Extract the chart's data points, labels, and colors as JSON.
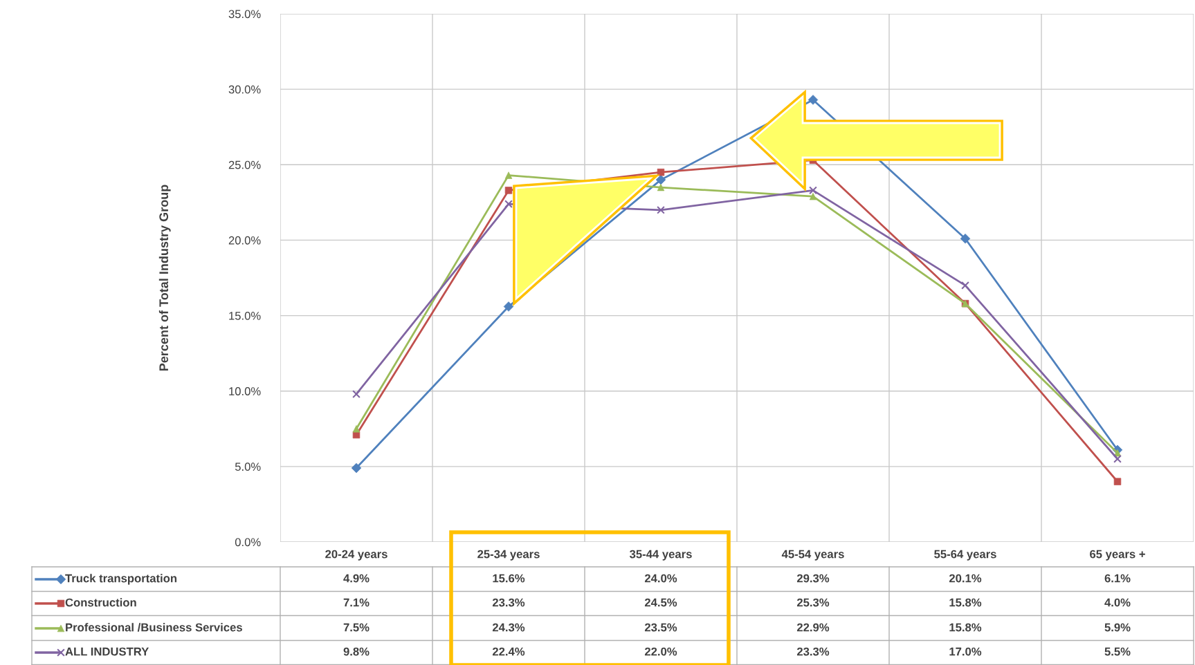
{
  "chart_data": {
    "type": "line",
    "ylabel": "Percent of Total Industry Group",
    "categories": [
      "20-24 years",
      "25-34 years",
      "35-44 years",
      "45-54 years",
      "55-64 years",
      "65 years +"
    ],
    "series": [
      {
        "name": "Truck transportation",
        "color": "#4f81bd",
        "marker": "diamond",
        "values": [
          4.9,
          15.6,
          24.0,
          29.3,
          20.1,
          6.1
        ],
        "value_labels": [
          "4.9%",
          "15.6%",
          "24.0%",
          "29.3%",
          "20.1%",
          "6.1%"
        ]
      },
      {
        "name": "Construction",
        "color": "#c0504d",
        "marker": "square",
        "values": [
          7.1,
          23.3,
          24.5,
          25.3,
          15.8,
          4.0
        ],
        "value_labels": [
          "7.1%",
          "23.3%",
          "24.5%",
          "25.3%",
          "15.8%",
          "4.0%"
        ]
      },
      {
        "name": "Professional /Business Services",
        "color": "#9bbb59",
        "marker": "triangle",
        "values": [
          7.5,
          24.3,
          23.5,
          22.9,
          15.8,
          5.9
        ],
        "value_labels": [
          "7.5%",
          "24.3%",
          "23.5%",
          "22.9%",
          "15.8%",
          "5.9%"
        ]
      },
      {
        "name": "ALL INDUSTRY",
        "color": "#8064a2",
        "marker": "cross",
        "values": [
          9.8,
          22.4,
          22.0,
          23.3,
          17.0,
          5.5
        ],
        "value_labels": [
          "9.8%",
          "22.4%",
          "22.0%",
          "23.3%",
          "17.0%",
          "5.5%"
        ]
      }
    ],
    "ylim": [
      0,
      35
    ],
    "yticks": [
      {
        "value": 0,
        "label": "0.0%"
      },
      {
        "value": 5,
        "label": "5.0%"
      },
      {
        "value": 10,
        "label": "10.0%"
      },
      {
        "value": 15,
        "label": "15.0%"
      },
      {
        "value": 20,
        "label": "20.0%"
      },
      {
        "value": 25,
        "label": "25.0%"
      },
      {
        "value": 30,
        "label": "30.0%"
      },
      {
        "value": 35,
        "label": "35.0%"
      }
    ],
    "grid": true,
    "legend": "bottom",
    "line_style": "solid"
  }
}
